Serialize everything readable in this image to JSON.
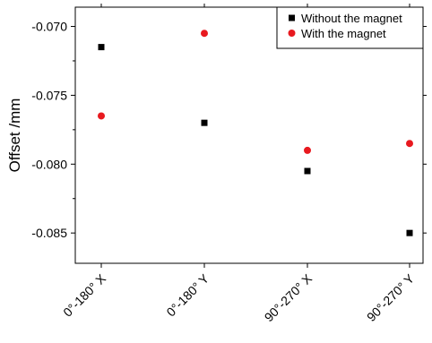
{
  "chart_data": {
    "type": "scatter",
    "categories": [
      "0°-180° X",
      "0°-180° Y",
      "90°-270° X",
      "90°-270° Y"
    ],
    "series": [
      {
        "name": "Without the magnet",
        "marker": "square",
        "color": "#000000",
        "values": [
          -0.0715,
          -0.077,
          -0.0805,
          -0.085
        ]
      },
      {
        "name": "With the magnet",
        "marker": "circle",
        "color": "#e8191f",
        "values": [
          -0.0765,
          -0.0705,
          -0.079,
          -0.0785
        ]
      }
    ],
    "title": "",
    "xlabel": "",
    "ylabel": "Offset /mm",
    "ylim": [
      -0.0872,
      -0.0686
    ],
    "yticks": [
      -0.085,
      -0.08,
      -0.075,
      -0.07
    ],
    "ytick_labels": [
      "-0.085",
      "-0.080",
      "-0.075",
      "-0.070"
    ],
    "grid": false,
    "legend_position": "top-right"
  }
}
